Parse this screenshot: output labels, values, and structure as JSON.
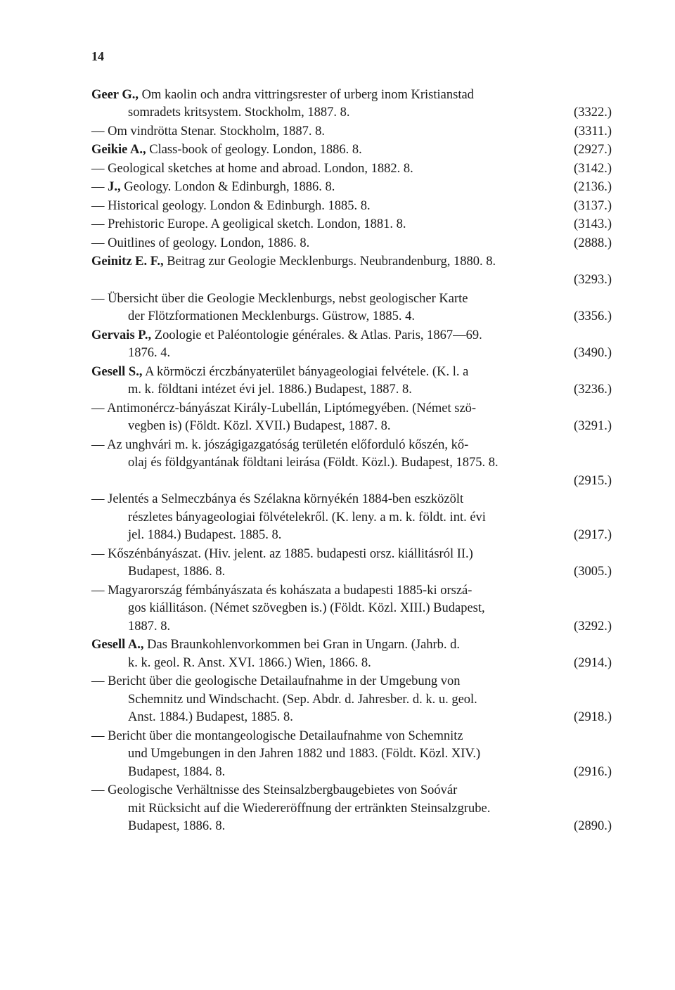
{
  "pageNumber": "14",
  "entries": [
    {
      "lines": [
        {
          "t": "<b>Geer G.,</b> Om kaolin och andra vittringsrester of urberg inom Kristianstad",
          "r": ""
        },
        {
          "t": "somradets kritsystem. Stockholm, 1887. 8.",
          "r": "(3322.)",
          "cont": true
        }
      ]
    },
    {
      "lines": [
        {
          "t": "— Om vindrötta Stenar. Stockholm, 1887. 8.",
          "r": "(3311.)"
        }
      ]
    },
    {
      "lines": [
        {
          "t": "<b>Geikie A.,</b> Class-book of geology. London, 1886. 8.",
          "r": "(2927.)"
        }
      ]
    },
    {
      "lines": [
        {
          "t": "— Geological sketches at home and abroad. London, 1882. 8.",
          "r": "(3142.)"
        }
      ]
    },
    {
      "lines": [
        {
          "t": "— <b>J.,</b> Geology. London & Edinburgh, 1886. 8.",
          "r": "(2136.)"
        }
      ]
    },
    {
      "lines": [
        {
          "t": "— Historical geology. London & Edinburgh. 1885. 8.",
          "r": "(3137.)"
        }
      ]
    },
    {
      "lines": [
        {
          "t": "— Prehistoric Europe. A geoligical sketch. London, 1881. 8.",
          "r": "(3143.)"
        }
      ]
    },
    {
      "lines": [
        {
          "t": "— Ouitlines of geology. London, 1886. 8.",
          "r": "(2888.)"
        }
      ]
    },
    {
      "lines": [
        {
          "t": "<b>Geinitz E. F.,</b> Beitrag zur Geologie Mecklenburgs. Neubrandenburg, 1880. 8.",
          "r": ""
        },
        {
          "t": "",
          "r": "(3293.)",
          "cont": true
        }
      ]
    },
    {
      "lines": [
        {
          "t": "— Übersicht über die Geologie Mecklenburgs, nebst geologischer Karte",
          "r": ""
        },
        {
          "t": "der Flötzformationen Mecklenburgs. Güstrow, 1885. 4.",
          "r": "(3356.)",
          "cont": true
        }
      ]
    },
    {
      "lines": [
        {
          "t": "<b>Gervais P.,</b> Zoologie et Paléontologie générales. & Atlas. Paris, 1867—69.",
          "r": ""
        },
        {
          "t": "1876. 4.",
          "r": "(3490.)",
          "cont": true
        }
      ]
    },
    {
      "lines": [
        {
          "t": "<b>Gesell S.,</b> A körmöczi érczbányaterület bányageologiai felvétele. (K. l. a",
          "r": ""
        },
        {
          "t": "m. k. földtani intézet évi jel. 1886.) Budapest, 1887. 8.",
          "r": "(3236.)",
          "cont": true
        }
      ]
    },
    {
      "lines": [
        {
          "t": "— Antimonércz-bányászat Király-Lubellán, Liptómegyében. (Német szö-",
          "r": ""
        },
        {
          "t": "vegben is) (Földt. Közl. XVII.) Budapest, 1887. 8.",
          "r": "(3291.)",
          "cont": true
        }
      ]
    },
    {
      "lines": [
        {
          "t": "— Az unghvári m. k. jószágigazgatóság területén előforduló kőszén, kő-",
          "r": ""
        },
        {
          "t": "olaj és földgyantának földtani leirása (Földt. Közl.). Budapest, 1875. 8.",
          "r": "",
          "cont": true
        },
        {
          "t": "",
          "r": "(2915.)",
          "cont": true
        }
      ]
    },
    {
      "lines": [
        {
          "t": "— Jelentés a Selmeczbánya és Szélakna környékén 1884-ben eszközölt",
          "r": ""
        },
        {
          "t": "részletes bányageologiai fölvételekről. (K. leny. a m. k. földt. int. évi",
          "r": "",
          "cont": true
        },
        {
          "t": "jel. 1884.) Budapest. 1885. 8.",
          "r": "(2917.)",
          "cont": true
        }
      ]
    },
    {
      "lines": [
        {
          "t": "— Kőszénbányászat. (Hiv. jelent. az 1885. budapesti orsz. kiállitásról II.)",
          "r": ""
        },
        {
          "t": "Budapest, 1886. 8.",
          "r": "(3005.)",
          "cont": true
        }
      ]
    },
    {
      "lines": [
        {
          "t": "— Magyarország fémbányászata és kohászata a budapesti 1885-ki orszá-",
          "r": ""
        },
        {
          "t": "gos kiállitáson. (Német szövegben is.) (Földt. Közl. XIII.) Budapest,",
          "r": "",
          "cont": true
        },
        {
          "t": "1887. 8.",
          "r": "(3292.)",
          "cont": true
        }
      ]
    },
    {
      "lines": [
        {
          "t": "<b>Gesell A.,</b> Das Braunkohlenvorkommen bei Gran in Ungarn. (Jahrb. d.",
          "r": ""
        },
        {
          "t": "k. k. geol. R. Anst. XVI. 1866.) Wien, 1866. 8.",
          "r": "(2914.)",
          "cont": true
        }
      ]
    },
    {
      "lines": [
        {
          "t": "— Bericht über die geologische Detailaufnahme in der Umgebung von",
          "r": ""
        },
        {
          "t": "Schemnitz und Windschacht. (Sep. Abdr. d. Jahresber. d. k. u. geol.",
          "r": "",
          "cont": true
        },
        {
          "t": "Anst. 1884.) Budapest, 1885. 8.",
          "r": "(2918.)",
          "cont": true
        }
      ]
    },
    {
      "lines": [
        {
          "t": "— Bericht über die montangeologische Detailaufnahme von Schemnitz",
          "r": ""
        },
        {
          "t": "und Umgebungen in den Jahren 1882 und 1883. (Földt. Közl. XIV.)",
          "r": "",
          "cont": true
        },
        {
          "t": "Budapest, 1884. 8.",
          "r": "(2916.)",
          "cont": true
        }
      ]
    },
    {
      "lines": [
        {
          "t": "— Geologische Verhältnisse des Steinsalzbergbaugebietes von Soóvár",
          "r": ""
        },
        {
          "t": "mit Rücksicht auf die Wiedereröffnung der ertränkten Steinsalzgrube.",
          "r": "",
          "cont": true
        },
        {
          "t": "Budapest, 1886. 8.",
          "r": "(2890.)",
          "cont": true
        }
      ]
    }
  ]
}
